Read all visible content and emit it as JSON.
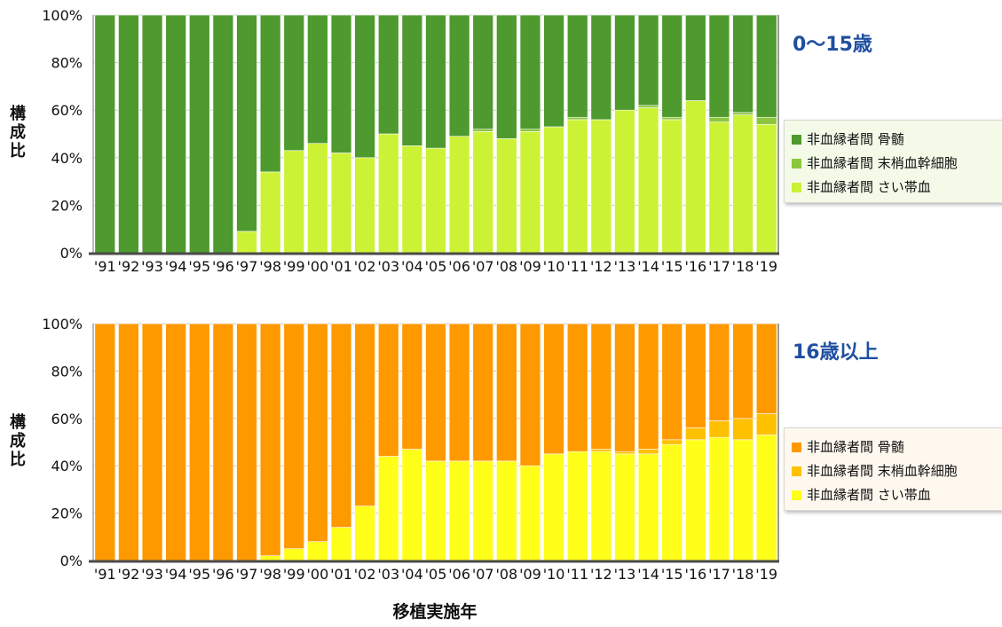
{
  "chart_data": [
    {
      "type": "bar",
      "stacked": true,
      "title": "0〜15歳",
      "ylabel": "構成比",
      "xlabel": "",
      "ylim": [
        0,
        100
      ],
      "yticks": [
        "0%",
        "20%",
        "40%",
        "60%",
        "80%",
        "100%"
      ],
      "categories": [
        "'91",
        "'92",
        "'93",
        "'94",
        "'95",
        "'96",
        "'97",
        "'98",
        "'99",
        "'00",
        "'01",
        "'02",
        "'03",
        "'04",
        "'05",
        "'06",
        "'07",
        "'08",
        "'09",
        "'10",
        "'11",
        "'12",
        "'13",
        "'14",
        "'15",
        "'16",
        "'17",
        "'18",
        "'19"
      ],
      "legend_position": "right",
      "series": [
        {
          "name": "非血縁者間 さい帯血",
          "color": "#ccf236",
          "values": [
            0,
            0,
            0,
            0,
            0,
            0,
            9,
            34,
            43,
            46,
            42,
            40,
            50,
            45,
            44,
            49,
            51,
            48,
            51,
            53,
            56,
            56,
            60,
            61,
            56,
            64,
            55,
            58,
            54
          ]
        },
        {
          "name": "非血縁者間 末梢血幹細胞",
          "color": "#8cc63e",
          "values": [
            0,
            0,
            0,
            0,
            0,
            0,
            0,
            0,
            0,
            0,
            0,
            0,
            0,
            0,
            0,
            0,
            1,
            0,
            1,
            0,
            1,
            0,
            0,
            1,
            1,
            0,
            2,
            1,
            3
          ]
        },
        {
          "name": "非血縁者間 骨髄",
          "color": "#4e9a2e",
          "values": [
            100,
            100,
            100,
            100,
            100,
            100,
            91,
            66,
            57,
            54,
            58,
            60,
            50,
            55,
            56,
            51,
            48,
            52,
            48,
            47,
            43,
            44,
            40,
            38,
            43,
            36,
            43,
            41,
            43
          ]
        }
      ]
    },
    {
      "type": "bar",
      "stacked": true,
      "title": "16歳以上",
      "ylabel": "構成比",
      "xlabel": "移植実施年",
      "ylim": [
        0,
        100
      ],
      "yticks": [
        "0%",
        "20%",
        "40%",
        "60%",
        "80%",
        "100%"
      ],
      "categories": [
        "'91",
        "'92",
        "'93",
        "'94",
        "'95",
        "'96",
        "'97",
        "'98",
        "'99",
        "'00",
        "'01",
        "'02",
        "'03",
        "'04",
        "'05",
        "'06",
        "'07",
        "'08",
        "'09",
        "'10",
        "'11",
        "'12",
        "'13",
        "'14",
        "'15",
        "'16",
        "'17",
        "'18",
        "'19"
      ],
      "legend_position": "right",
      "series": [
        {
          "name": "非血縁者間 さい帯血",
          "color": "#ffff1a",
          "values": [
            0,
            0,
            0,
            0,
            0,
            0,
            0,
            2,
            5,
            8,
            14,
            23,
            44,
            47,
            42,
            42,
            42,
            42,
            40,
            45,
            46,
            46,
            45,
            45,
            49,
            51,
            52,
            51,
            53
          ]
        },
        {
          "name": "非血縁者間 末梢血幹細胞",
          "color": "#ffc000",
          "values": [
            0,
            0,
            0,
            0,
            0,
            0,
            0,
            0,
            0,
            0,
            0,
            0,
            0,
            0,
            0,
            0,
            0,
            0,
            0,
            0,
            0,
            1,
            1,
            2,
            2,
            5,
            7,
            9,
            9
          ]
        },
        {
          "name": "非血縁者間 骨髄",
          "color": "#ff9900",
          "values": [
            100,
            100,
            100,
            100,
            100,
            100,
            100,
            98,
            95,
            92,
            86,
            77,
            56,
            53,
            58,
            58,
            58,
            58,
            60,
            55,
            54,
            53,
            54,
            53,
            49,
            44,
            41,
            40,
            38
          ]
        }
      ]
    }
  ],
  "legend_labels": [
    "非血縁者間 骨髄",
    "非血縁者間 末梢血幹細胞",
    "非血縁者間 さい帯血"
  ],
  "xlabel": "移植実施年"
}
